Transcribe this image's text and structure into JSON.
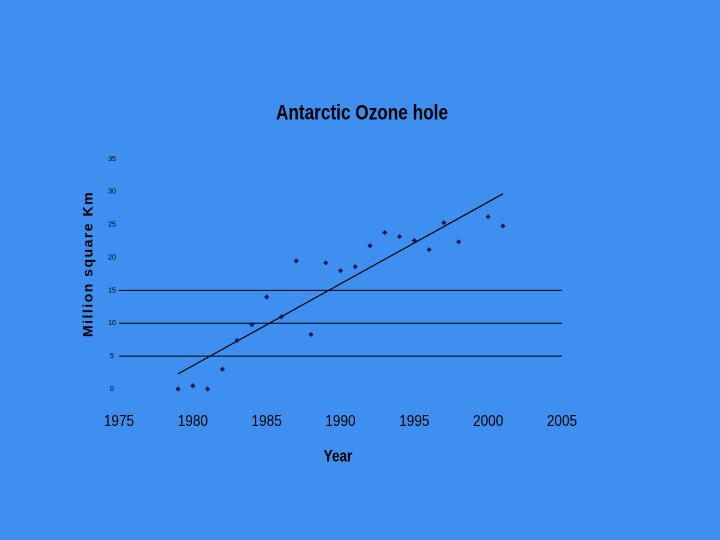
{
  "chart_data": {
    "type": "scatter",
    "title": "Antarctic Ozone hole",
    "x_label": "Year",
    "y_label": "Million square Km",
    "x": [
      1979,
      1980,
      1981,
      1982,
      1983,
      1984,
      1985,
      1986,
      1987,
      1988,
      1989,
      1990,
      1991,
      1992,
      1993,
      1994,
      1995,
      1996,
      1997,
      1998,
      2000,
      2001
    ],
    "values": [
      0,
      0.5,
      0,
      3,
      7.4,
      9.8,
      14,
      11,
      19.5,
      8.3,
      19.2,
      18,
      18.6,
      21.8,
      23.8,
      23.2,
      22.6,
      21.2,
      25.3,
      22.4,
      26.2,
      24.8
    ],
    "color": "#1b1b5e",
    "trendline": {
      "x": [
        1979,
        2001
      ],
      "values": [
        2.3,
        29.7
      ]
    },
    "xlim": [
      1975,
      2005
    ],
    "xticks": [
      1975,
      1980,
      1985,
      1990,
      1995,
      2000,
      2005
    ],
    "ylim": [
      0,
      35
    ],
    "yticks": [
      0,
      5,
      10,
      15,
      20,
      25,
      30,
      35
    ],
    "grid_lines": [
      5,
      10,
      15
    ]
  }
}
